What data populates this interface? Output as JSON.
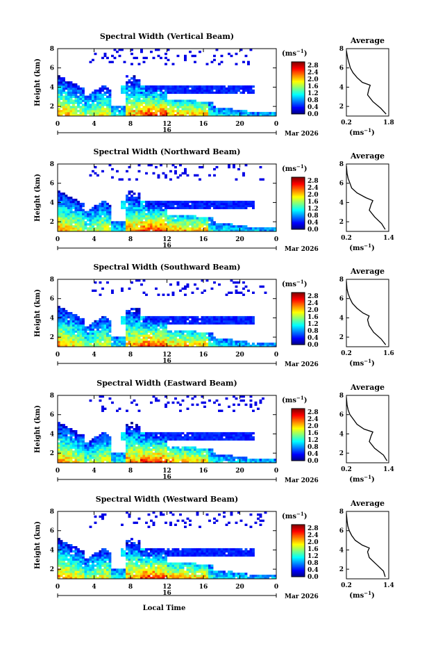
{
  "figure": {
    "xlabel": "Local Time",
    "date_label": "Mar 2026",
    "day_label": "16",
    "cbar_unit": "(ms",
    "cbar_unit_exp": "−1",
    "avg_title": "Average",
    "avg_unit": "(ms",
    "avg_unit_exp": "−1"
  },
  "chart_data": [
    {
      "type": "heatmap",
      "title": "Spectral Width (Vertical Beam)",
      "ylabel": "Height (km)",
      "x_ticks": [
        "0",
        "4",
        "8",
        "12",
        "16",
        "20",
        "0"
      ],
      "y_ticks": [
        "2",
        "4",
        "6",
        "8"
      ],
      "xlim": [
        0,
        24
      ],
      "ylim": [
        1,
        8
      ],
      "cbar_ticks": [
        "0.0",
        "0.4",
        "0.8",
        "1.2",
        "1.6",
        "2.0",
        "2.4",
        "2.8"
      ],
      "cbar_range": [
        0,
        3.0
      ],
      "colormap": "jet",
      "average_profile": {
        "xlim": [
          0.2,
          1.8
        ],
        "x_ticks": [
          "0.2",
          "1.8"
        ],
        "y_ticks": [
          "2",
          "4",
          "6",
          "8"
        ],
        "height": [
          1.2,
          1.8,
          2.5,
          3.2,
          3.8,
          4.2,
          4.5,
          5.0,
          5.5,
          6.0,
          6.5,
          7.0,
          7.8
        ],
        "value": [
          1.7,
          1.5,
          1.2,
          1.0,
          1.05,
          1.1,
          0.8,
          0.6,
          0.45,
          0.35,
          0.3,
          0.25,
          0.2
        ]
      }
    },
    {
      "type": "heatmap",
      "title": "Spectral Width (Northward Beam)",
      "ylabel": "Height (km)",
      "x_ticks": [
        "0",
        "4",
        "8",
        "12",
        "16",
        "20",
        "0"
      ],
      "y_ticks": [
        "2",
        "4",
        "6",
        "8"
      ],
      "xlim": [
        0,
        24
      ],
      "ylim": [
        1,
        8
      ],
      "cbar_ticks": [
        "0.0",
        "0.4",
        "0.8",
        "1.2",
        "1.6",
        "2.0",
        "2.4",
        "2.8"
      ],
      "cbar_range": [
        0,
        3.0
      ],
      "colormap": "jet",
      "average_profile": {
        "xlim": [
          0.2,
          1.4
        ],
        "x_ticks": [
          "0.2",
          "1.4"
        ],
        "y_ticks": [
          "2",
          "4",
          "6",
          "8"
        ],
        "height": [
          1.2,
          1.8,
          2.5,
          3.2,
          3.8,
          4.2,
          4.5,
          5.0,
          5.5,
          6.0,
          6.5,
          7.0,
          7.8
        ],
        "value": [
          1.3,
          1.2,
          1.0,
          0.85,
          0.9,
          0.95,
          0.75,
          0.5,
          0.35,
          0.3,
          0.25,
          0.22,
          0.2
        ]
      }
    },
    {
      "type": "heatmap",
      "title": "Spectral Width (Southward Beam)",
      "ylabel": "Height (km)",
      "x_ticks": [
        "0",
        "4",
        "8",
        "12",
        "16",
        "20",
        "0"
      ],
      "y_ticks": [
        "2",
        "4",
        "6",
        "8"
      ],
      "xlim": [
        0,
        24
      ],
      "ylim": [
        1,
        8
      ],
      "cbar_ticks": [
        "0.0",
        "0.4",
        "0.8",
        "1.2",
        "1.6",
        "2.0",
        "2.4",
        "2.8"
      ],
      "cbar_range": [
        0,
        3.0
      ],
      "colormap": "jet",
      "average_profile": {
        "xlim": [
          0.2,
          1.6
        ],
        "x_ticks": [
          "0.2",
          "1.6"
        ],
        "y_ticks": [
          "2",
          "4",
          "6",
          "8"
        ],
        "height": [
          1.2,
          1.8,
          2.5,
          3.2,
          3.8,
          4.2,
          4.5,
          5.0,
          5.5,
          6.0,
          6.5,
          7.0,
          7.8
        ],
        "value": [
          1.5,
          1.35,
          1.1,
          0.95,
          0.9,
          0.95,
          0.75,
          0.55,
          0.4,
          0.32,
          0.26,
          0.22,
          0.2
        ]
      }
    },
    {
      "type": "heatmap",
      "title": "Spectral Width (Eastward Beam)",
      "ylabel": "Height (km)",
      "x_ticks": [
        "0",
        "4",
        "8",
        "12",
        "16",
        "20",
        "0"
      ],
      "y_ticks": [
        "2",
        "4",
        "6",
        "8"
      ],
      "xlim": [
        0,
        24
      ],
      "ylim": [
        1,
        8
      ],
      "cbar_ticks": [
        "0.0",
        "0.4",
        "0.8",
        "1.2",
        "1.6",
        "2.0",
        "2.4",
        "2.8"
      ],
      "cbar_range": [
        0,
        3.0
      ],
      "colormap": "jet",
      "average_profile": {
        "xlim": [
          0.2,
          1.4
        ],
        "x_ticks": [
          "0.2",
          "1.4"
        ],
        "y_ticks": [
          "2",
          "4",
          "6",
          "8"
        ],
        "height": [
          1.2,
          1.8,
          2.5,
          3.2,
          3.8,
          4.2,
          4.5,
          5.0,
          5.5,
          6.0,
          6.5,
          7.0,
          7.8
        ],
        "value": [
          1.35,
          1.25,
          1.0,
          0.85,
          0.9,
          0.95,
          0.7,
          0.5,
          0.4,
          0.3,
          0.25,
          0.22,
          0.2
        ]
      }
    },
    {
      "type": "heatmap",
      "title": "Spectral Width (Westward Beam)",
      "ylabel": "Height (km)",
      "x_ticks": [
        "0",
        "4",
        "8",
        "12",
        "16",
        "20",
        "0"
      ],
      "y_ticks": [
        "2",
        "4",
        "6",
        "8"
      ],
      "xlim": [
        0,
        24
      ],
      "ylim": [
        1,
        8
      ],
      "cbar_ticks": [
        "0.0",
        "0.4",
        "0.8",
        "1.2",
        "1.6",
        "2.0",
        "2.4",
        "2.8"
      ],
      "cbar_range": [
        0,
        3.0
      ],
      "colormap": "jet",
      "average_profile": {
        "xlim": [
          0.2,
          1.4
        ],
        "x_ticks": [
          "0.2",
          "1.4"
        ],
        "y_ticks": [
          "2",
          "4",
          "6",
          "8"
        ],
        "height": [
          1.2,
          1.8,
          2.5,
          3.2,
          3.8,
          4.2,
          4.5,
          5.0,
          5.5,
          6.0,
          6.5,
          7.0,
          7.8
        ],
        "value": [
          1.3,
          1.25,
          1.05,
          0.85,
          0.8,
          0.85,
          0.65,
          0.45,
          0.35,
          0.28,
          0.24,
          0.22,
          0.2
        ]
      }
    }
  ]
}
